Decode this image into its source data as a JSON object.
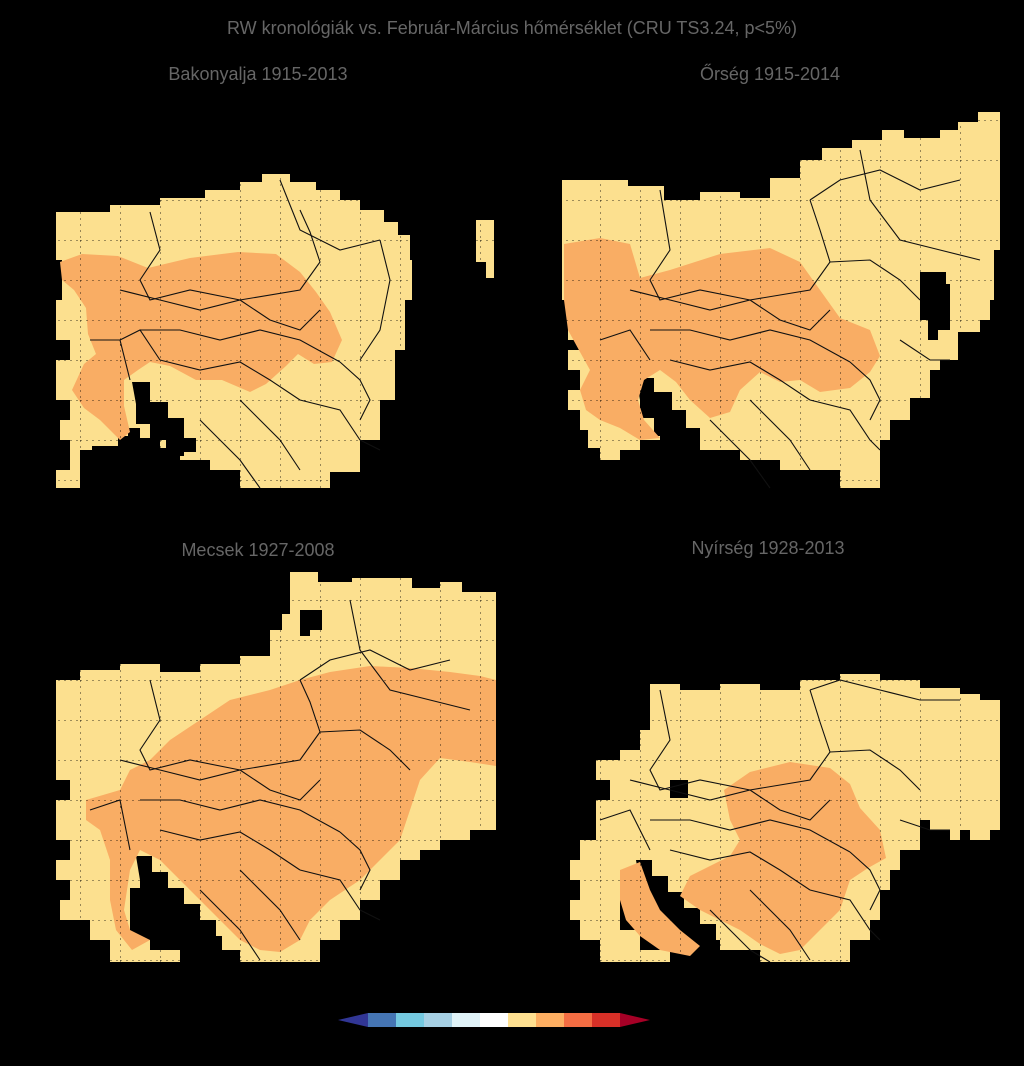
{
  "title": "RW kronológiák vs. Február-Március hőmérséklet (CRU TS3.24, p<5%)",
  "panels": [
    {
      "name": "bakonyalja",
      "label": "Bakonyalja 1915-2013"
    },
    {
      "name": "orseg",
      "label": "Őrség 1915-2014"
    },
    {
      "name": "mecsek",
      "label": "Mecsek 1927-2008"
    },
    {
      "name": "nyirseg",
      "label": "Nyírség 1928-2013"
    }
  ],
  "colors": {
    "background": "#000000",
    "light_orange": "#fce08f",
    "medium_orange": "#f9ad64",
    "border": "#111111"
  },
  "colorbar": {
    "colors": [
      "#313695",
      "#4575b4",
      "#74c9e0",
      "#a6d0e4",
      "#e0f3f8",
      "#ffffff",
      "#fee090",
      "#fdae61",
      "#f46d43",
      "#d73027",
      "#a50026"
    ],
    "extend": "both"
  }
}
